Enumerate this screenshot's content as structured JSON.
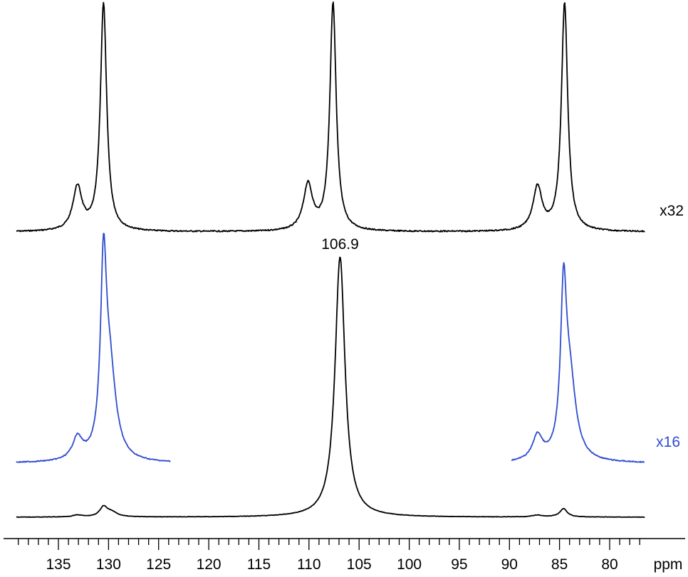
{
  "chart_data": {
    "type": "line",
    "title": "",
    "xlabel": "ppm",
    "ylabel": "",
    "x_reversed": true,
    "xlim": [
      139.2,
      76.5
    ],
    "grid": false,
    "x_ticks_major": [
      135,
      130,
      125,
      120,
      115,
      110,
      105,
      100,
      95,
      90,
      85,
      80
    ],
    "x_tick_labels": [
      "135",
      "130",
      "125",
      "120",
      "115",
      "110",
      "105",
      "100",
      "95",
      "90",
      "85",
      "80"
    ],
    "x_minor_step": 1,
    "series": [
      {
        "role": "top-expanded-x32",
        "color": "#000000",
        "scale_label": "x32",
        "peaks": [
          {
            "ppm": 130.5,
            "height": 1.0,
            "width": 0.38
          },
          {
            "ppm": 133.1,
            "height": 0.19,
            "width": 0.55
          },
          {
            "ppm": 107.6,
            "height": 1.0,
            "width": 0.38
          },
          {
            "ppm": 110.1,
            "height": 0.2,
            "width": 0.55
          },
          {
            "ppm": 84.5,
            "height": 1.0,
            "width": 0.38
          },
          {
            "ppm": 87.2,
            "height": 0.19,
            "width": 0.55
          }
        ]
      },
      {
        "role": "middle-expanded-x16",
        "color": "#2f4ccf",
        "scale_label": "x16",
        "segments": [
          [
            139.2,
            123.8
          ],
          [
            89.8,
            76.5
          ]
        ],
        "peaks": [
          {
            "ppm": 130.5,
            "height": 0.72,
            "width": 0.35
          },
          {
            "ppm": 129.9,
            "height": 0.37,
            "width": 0.75
          },
          {
            "ppm": 133.1,
            "height": 0.09,
            "width": 0.6
          },
          {
            "ppm": 84.6,
            "height": 0.62,
            "width": 0.35
          },
          {
            "ppm": 84.0,
            "height": 0.33,
            "width": 0.75
          },
          {
            "ppm": 87.2,
            "height": 0.1,
            "width": 0.6
          }
        ]
      },
      {
        "role": "bottom-full",
        "color": "#000000",
        "peaks": [
          {
            "ppm": 106.9,
            "height": 1.0,
            "width": 0.6
          },
          {
            "ppm": 130.5,
            "height": 0.036,
            "width": 0.45
          },
          {
            "ppm": 129.7,
            "height": 0.018,
            "width": 0.7
          },
          {
            "ppm": 133.1,
            "height": 0.007,
            "width": 0.6
          },
          {
            "ppm": 84.6,
            "height": 0.032,
            "width": 0.45
          },
          {
            "ppm": 87.2,
            "height": 0.007,
            "width": 0.6
          }
        ],
        "annotation": "106.9"
      }
    ]
  }
}
